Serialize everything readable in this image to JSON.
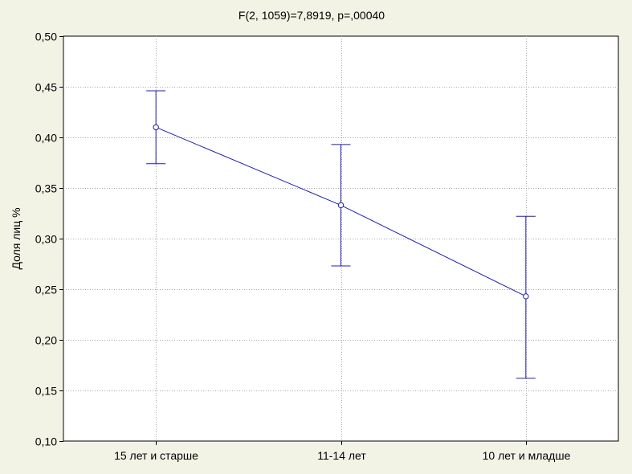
{
  "chart_data": {
    "type": "line",
    "title": "F(2, 1059)=7,8919, p=,00040",
    "xlabel": "",
    "ylabel": "Доля лиц %",
    "categories": [
      "15 лет и старше",
      "11-14 лет",
      "10 лет и младше"
    ],
    "series": [
      {
        "values": [
          0.41,
          0.333,
          0.243
        ],
        "error_low": [
          0.374,
          0.273,
          0.162
        ],
        "error_high": [
          0.446,
          0.393,
          0.322
        ]
      }
    ],
    "ylim": [
      0.1,
      0.5
    ],
    "yticks": [
      0.1,
      0.15,
      0.2,
      0.25,
      0.3,
      0.35,
      0.4,
      0.45,
      0.5
    ],
    "ytick_labels": [
      "0,10",
      "0,15",
      "0,20",
      "0,25",
      "0,30",
      "0,35",
      "0,40",
      "0,45",
      "0,50"
    ],
    "grid": true,
    "colors": {
      "line": "#1c1cb4",
      "background": "#f3f3e5",
      "plot_area": "#ffffff",
      "grid": "#a8a8a8"
    }
  }
}
